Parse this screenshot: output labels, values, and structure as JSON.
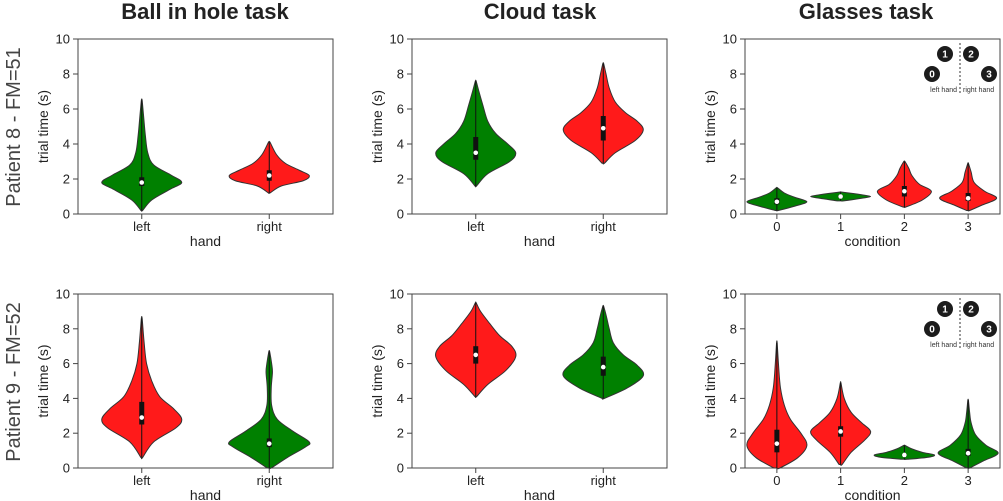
{
  "figure": {
    "column_titles": [
      "Ball in hole task",
      "Cloud task",
      "Glasses task"
    ],
    "row_labels": [
      "Patient 8 - FM=51",
      "Patient 9 - FM=52"
    ],
    "colors": {
      "green": "#008000",
      "red": "#ff1a1a",
      "edge": "#333333",
      "median": "#ffffff",
      "box": "#111111"
    }
  },
  "chart_data": [
    {
      "type": "violin",
      "row": 0,
      "col": 0,
      "xlabel": "hand",
      "ylabel": "trial time (s)",
      "ylim": [
        0,
        10
      ],
      "yticks": [
        0,
        2,
        4,
        6,
        8,
        10
      ],
      "categories": [
        "left",
        "right"
      ],
      "violins": [
        {
          "category": "left",
          "color": "green",
          "min": 0.2,
          "max": 6.5,
          "median": 1.8,
          "q1": 1.6,
          "q3": 2.1,
          "profile": [
            [
              0.2,
              0.02
            ],
            [
              0.8,
              0.25
            ],
            [
              1.4,
              0.7
            ],
            [
              1.8,
              1.0
            ],
            [
              2.2,
              0.75
            ],
            [
              2.8,
              0.3
            ],
            [
              3.5,
              0.15
            ],
            [
              4.5,
              0.09
            ],
            [
              5.5,
              0.05
            ],
            [
              6.5,
              0.01
            ]
          ]
        },
        {
          "category": "right",
          "color": "red",
          "min": 1.2,
          "max": 4.1,
          "median": 2.2,
          "q1": 1.9,
          "q3": 2.5,
          "profile": [
            [
              1.2,
              0.02
            ],
            [
              1.6,
              0.3
            ],
            [
              1.9,
              0.85
            ],
            [
              2.2,
              1.0
            ],
            [
              2.5,
              0.75
            ],
            [
              2.9,
              0.4
            ],
            [
              3.4,
              0.18
            ],
            [
              4.1,
              0.02
            ]
          ]
        }
      ]
    },
    {
      "type": "violin",
      "row": 0,
      "col": 1,
      "xlabel": "hand",
      "ylabel": "trial time (s)",
      "ylim": [
        0,
        10
      ],
      "yticks": [
        0,
        2,
        4,
        6,
        8,
        10
      ],
      "categories": [
        "left",
        "right"
      ],
      "violins": [
        {
          "category": "left",
          "color": "green",
          "min": 1.6,
          "max": 7.6,
          "median": 3.5,
          "q1": 3.1,
          "q3": 4.4,
          "profile": [
            [
              1.6,
              0.02
            ],
            [
              2.3,
              0.3
            ],
            [
              3.0,
              0.85
            ],
            [
              3.5,
              1.0
            ],
            [
              4.0,
              0.8
            ],
            [
              4.6,
              0.5
            ],
            [
              5.3,
              0.3
            ],
            [
              6.2,
              0.18
            ],
            [
              7.0,
              0.08
            ],
            [
              7.6,
              0.01
            ]
          ]
        },
        {
          "category": "right",
          "color": "red",
          "min": 2.9,
          "max": 8.6,
          "median": 4.9,
          "q1": 4.2,
          "q3": 5.6,
          "profile": [
            [
              2.9,
              0.03
            ],
            [
              3.5,
              0.3
            ],
            [
              4.2,
              0.8
            ],
            [
              4.8,
              1.0
            ],
            [
              5.3,
              0.85
            ],
            [
              5.8,
              0.55
            ],
            [
              6.4,
              0.3
            ],
            [
              7.2,
              0.15
            ],
            [
              8.0,
              0.07
            ],
            [
              8.6,
              0.01
            ]
          ]
        }
      ]
    },
    {
      "type": "violin",
      "row": 0,
      "col": 2,
      "xlabel": "condition",
      "ylabel": "trial time (s)",
      "ylim": [
        0,
        10
      ],
      "yticks": [
        0,
        2,
        4,
        6,
        8,
        10
      ],
      "categories": [
        "0",
        "1",
        "2",
        "3"
      ],
      "inset": {
        "numbers": [
          "0",
          "1",
          "2",
          "3"
        ],
        "left_caption": "left hand",
        "right_caption": "right hand"
      },
      "violins": [
        {
          "category": "0",
          "color": "green",
          "min": 0.2,
          "max": 1.5,
          "median": 0.7,
          "q1": 0.55,
          "q3": 0.9,
          "profile": [
            [
              0.2,
              0.05
            ],
            [
              0.45,
              0.6
            ],
            [
              0.7,
              1.0
            ],
            [
              0.95,
              0.6
            ],
            [
              1.2,
              0.25
            ],
            [
              1.5,
              0.02
            ]
          ]
        },
        {
          "category": "1",
          "color": "green",
          "min": 0.75,
          "max": 1.25,
          "median": 1.0,
          "q1": 0.92,
          "q3": 1.07,
          "profile": [
            [
              0.75,
              0.1
            ],
            [
              0.9,
              0.7
            ],
            [
              1.0,
              1.0
            ],
            [
              1.1,
              0.7
            ],
            [
              1.25,
              0.05
            ]
          ]
        },
        {
          "category": "2",
          "color": "red",
          "min": 0.4,
          "max": 3.0,
          "median": 1.3,
          "q1": 1.0,
          "q3": 1.6,
          "profile": [
            [
              0.4,
              0.05
            ],
            [
              0.8,
              0.6
            ],
            [
              1.3,
              0.9
            ],
            [
              1.7,
              0.5
            ],
            [
              2.2,
              0.25
            ],
            [
              2.6,
              0.15
            ],
            [
              3.0,
              0.02
            ]
          ]
        },
        {
          "category": "3",
          "color": "red",
          "min": 0.2,
          "max": 2.9,
          "median": 0.9,
          "q1": 0.75,
          "q3": 1.2,
          "profile": [
            [
              0.2,
              0.05
            ],
            [
              0.5,
              0.45
            ],
            [
              0.9,
              0.95
            ],
            [
              1.3,
              0.55
            ],
            [
              1.8,
              0.2
            ],
            [
              2.4,
              0.1
            ],
            [
              2.9,
              0.01
            ]
          ]
        }
      ]
    },
    {
      "type": "violin",
      "row": 1,
      "col": 0,
      "xlabel": "hand",
      "ylabel": "trial time (s)",
      "ylim": [
        0,
        10
      ],
      "yticks": [
        0,
        2,
        4,
        6,
        8,
        10
      ],
      "categories": [
        "left",
        "right"
      ],
      "violins": [
        {
          "category": "left",
          "color": "red",
          "min": 0.6,
          "max": 8.6,
          "median": 2.9,
          "q1": 2.5,
          "q3": 3.8,
          "profile": [
            [
              0.6,
              0.02
            ],
            [
              1.5,
              0.3
            ],
            [
              2.3,
              0.85
            ],
            [
              2.8,
              1.0
            ],
            [
              3.4,
              0.8
            ],
            [
              4.1,
              0.45
            ],
            [
              5.0,
              0.25
            ],
            [
              6.0,
              0.12
            ],
            [
              7.2,
              0.06
            ],
            [
              8.6,
              0.01
            ]
          ]
        },
        {
          "category": "right",
          "color": "green",
          "min": 0.0,
          "max": 6.7,
          "median": 1.4,
          "q1": 1.2,
          "q3": 1.7,
          "profile": [
            [
              0.0,
              0.05
            ],
            [
              0.6,
              0.45
            ],
            [
              1.2,
              0.9
            ],
            [
              1.5,
              1.0
            ],
            [
              2.1,
              0.6
            ],
            [
              2.8,
              0.2
            ],
            [
              3.6,
              0.06
            ],
            [
              4.6,
              0.05
            ],
            [
              5.5,
              0.08
            ],
            [
              6.0,
              0.06
            ],
            [
              6.7,
              0.01
            ]
          ]
        }
      ]
    },
    {
      "type": "violin",
      "row": 1,
      "col": 1,
      "xlabel": "hand",
      "ylabel": "trial time (s)",
      "ylim": [
        0,
        10
      ],
      "yticks": [
        0,
        2,
        4,
        6,
        8,
        10
      ],
      "categories": [
        "left",
        "right"
      ],
      "violins": [
        {
          "category": "left",
          "color": "red",
          "min": 4.1,
          "max": 9.5,
          "median": 6.5,
          "q1": 6.0,
          "q3": 7.0,
          "profile": [
            [
              4.1,
              0.02
            ],
            [
              4.8,
              0.3
            ],
            [
              5.6,
              0.75
            ],
            [
              6.4,
              1.0
            ],
            [
              7.0,
              0.9
            ],
            [
              7.6,
              0.6
            ],
            [
              8.3,
              0.35
            ],
            [
              9.0,
              0.12
            ],
            [
              9.5,
              0.01
            ]
          ]
        },
        {
          "category": "right",
          "color": "green",
          "min": 4.0,
          "max": 9.3,
          "median": 5.8,
          "q1": 5.3,
          "q3": 6.4,
          "profile": [
            [
              4.0,
              0.03
            ],
            [
              4.6,
              0.6
            ],
            [
              5.3,
              1.0
            ],
            [
              5.9,
              0.85
            ],
            [
              6.5,
              0.5
            ],
            [
              7.2,
              0.25
            ],
            [
              8.0,
              0.15
            ],
            [
              8.7,
              0.08
            ],
            [
              9.3,
              0.01
            ]
          ]
        }
      ]
    },
    {
      "type": "violin",
      "row": 1,
      "col": 2,
      "xlabel": "condition",
      "ylabel": "trial time (s)",
      "ylim": [
        0,
        10
      ],
      "yticks": [
        0,
        2,
        4,
        6,
        8,
        10
      ],
      "categories": [
        "0",
        "1",
        "2",
        "3"
      ],
      "inset": {
        "numbers": [
          "0",
          "1",
          "2",
          "3"
        ],
        "left_caption": "left hand",
        "right_caption": "right hand"
      },
      "violins": [
        {
          "category": "0",
          "color": "red",
          "min": 0.0,
          "max": 7.2,
          "median": 1.4,
          "q1": 0.9,
          "q3": 2.2,
          "profile": [
            [
              0.0,
              0.1
            ],
            [
              0.6,
              0.7
            ],
            [
              1.3,
              1.0
            ],
            [
              2.0,
              0.8
            ],
            [
              2.8,
              0.45
            ],
            [
              3.6,
              0.25
            ],
            [
              4.6,
              0.12
            ],
            [
              5.8,
              0.06
            ],
            [
              7.2,
              0.01
            ]
          ]
        },
        {
          "category": "1",
          "color": "red",
          "min": 0.2,
          "max": 4.9,
          "median": 2.1,
          "q1": 1.8,
          "q3": 2.4,
          "profile": [
            [
              0.2,
              0.05
            ],
            [
              0.9,
              0.35
            ],
            [
              1.6,
              0.8
            ],
            [
              2.1,
              1.0
            ],
            [
              2.6,
              0.7
            ],
            [
              3.2,
              0.35
            ],
            [
              4.0,
              0.12
            ],
            [
              4.9,
              0.01
            ]
          ]
        },
        {
          "category": "2",
          "color": "green",
          "min": 0.5,
          "max": 1.3,
          "median": 0.75,
          "q1": 0.68,
          "q3": 0.82,
          "profile": [
            [
              0.5,
              0.1
            ],
            [
              0.62,
              0.8
            ],
            [
              0.75,
              1.0
            ],
            [
              0.9,
              0.6
            ],
            [
              1.1,
              0.25
            ],
            [
              1.3,
              0.02
            ]
          ]
        },
        {
          "category": "3",
          "color": "green",
          "min": 0.0,
          "max": 3.9,
          "median": 0.85,
          "q1": 0.7,
          "q3": 1.1,
          "profile": [
            [
              0.0,
              0.05
            ],
            [
              0.4,
              0.5
            ],
            [
              0.85,
              1.0
            ],
            [
              1.3,
              0.6
            ],
            [
              1.9,
              0.25
            ],
            [
              2.6,
              0.1
            ],
            [
              3.2,
              0.05
            ],
            [
              3.9,
              0.01
            ]
          ]
        }
      ]
    }
  ]
}
